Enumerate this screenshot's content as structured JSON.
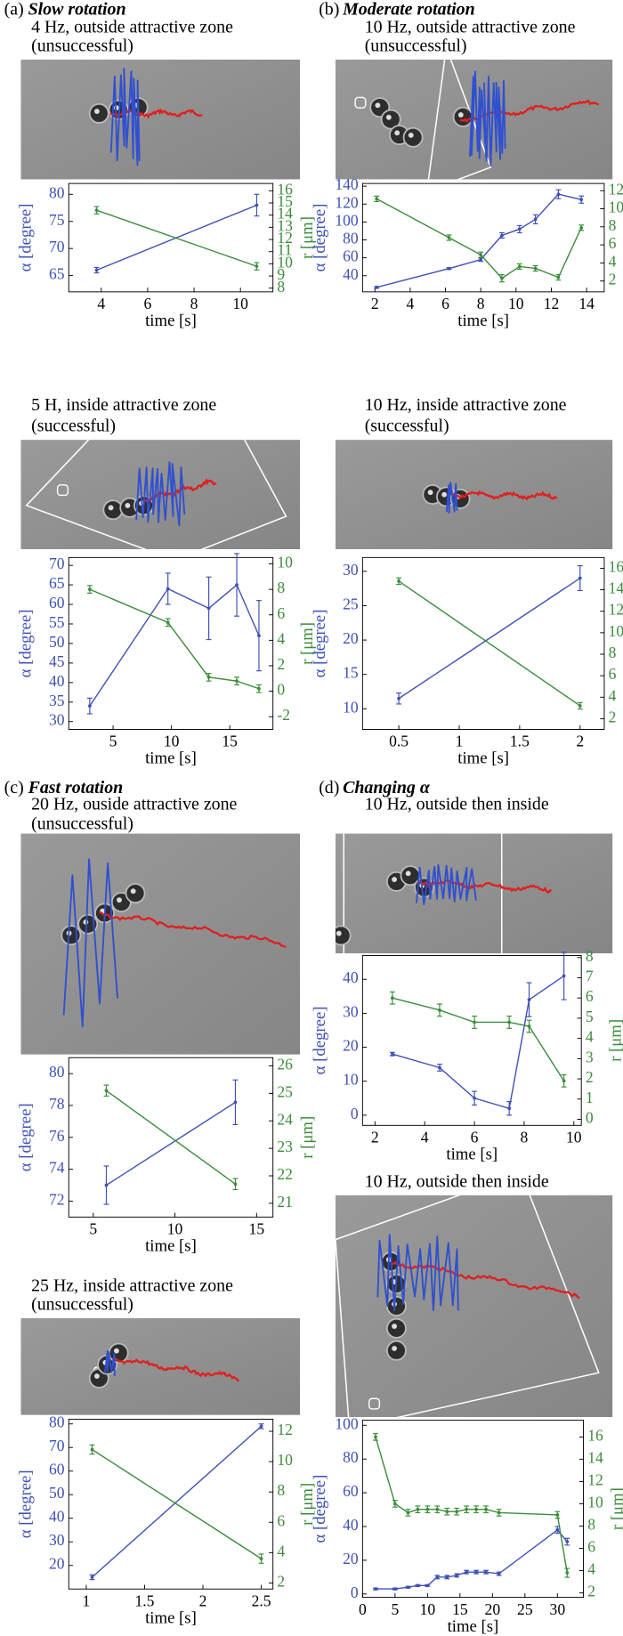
{
  "panels": [
    {
      "label": "(a)",
      "name": "Slow rotation"
    },
    {
      "label": "(b)",
      "name": "Moderate rotation"
    },
    {
      "label": "(c)",
      "name": "Fast rotation"
    },
    {
      "label": "(d)",
      "name": "Changing α"
    }
  ],
  "chart_data": [
    {
      "type": "line",
      "title": "4 Hz, outside attractive zone",
      "subtitle": "(unsuccessful)",
      "xlabel": "time [s]",
      "ylabel": "α [degree]",
      "y2label": "r [μm]",
      "x": [
        3.8,
        10.7
      ],
      "xlim": [
        2.6,
        11.4
      ],
      "xticks": [
        4,
        6,
        8,
        10
      ],
      "ylim": [
        62,
        82
      ],
      "yticks": [
        65,
        70,
        75,
        80
      ],
      "y2lim": [
        7.7,
        16.6
      ],
      "y2ticks": [
        8,
        9,
        10,
        11,
        12,
        13,
        14,
        15,
        16
      ],
      "series": [
        {
          "color": "#3f51b5",
          "axis": "y",
          "values": [
            66,
            78
          ],
          "errors": [
            0.5,
            2
          ]
        },
        {
          "color": "#3c8c3c",
          "axis": "y2",
          "values": [
            14.4,
            9.8
          ],
          "errors": [
            0.3,
            0.3
          ]
        }
      ]
    },
    {
      "type": "line",
      "title": "10 Hz, outside attractive zone",
      "subtitle": "(unsuccessful)",
      "xlabel": "time [s]",
      "ylabel": "α [degree]",
      "y2label": "r [μm]",
      "x": [
        2.1,
        6.2,
        8,
        9.2,
        10.2,
        11.1,
        12.4,
        13.7
      ],
      "xlim": [
        1.3,
        15
      ],
      "xticks": [
        2,
        4,
        6,
        8,
        10,
        12,
        14
      ],
      "ylim": [
        22,
        143
      ],
      "yticks": [
        40,
        60,
        80,
        100,
        120,
        140
      ],
      "y2lim": [
        0.8,
        12.8
      ],
      "y2ticks": [
        2,
        4,
        6,
        8,
        10,
        12
      ],
      "series": [
        {
          "color": "#3f51b5",
          "axis": "y",
          "values": [
            27,
            48,
            58,
            85,
            92,
            103,
            131,
            125
          ],
          "errors": [
            1,
            1,
            2,
            3,
            4,
            5,
            5,
            4
          ]
        },
        {
          "color": "#3c8c3c",
          "axis": "y2",
          "values": [
            11.1,
            6.8,
            4.9,
            2.3,
            3.6,
            3.4,
            2.4,
            7.9
          ],
          "errors": [
            0.3,
            0.3,
            0.3,
            0.4,
            0.3,
            0.3,
            0.3,
            0.3
          ]
        }
      ]
    },
    {
      "type": "line",
      "title": "5 H, inside attractive zone",
      "subtitle": "(successful)",
      "xlabel": "time [s]",
      "ylabel": "α [degree]",
      "y2label": "r [μm]",
      "x": [
        3,
        9.7,
        13.2,
        15.6,
        17.5
      ],
      "xlim": [
        1.2,
        18.7
      ],
      "xticks": [
        5,
        10,
        15
      ],
      "ylim": [
        28,
        72
      ],
      "yticks": [
        30,
        35,
        40,
        45,
        50,
        55,
        60,
        65,
        70
      ],
      "y2lim": [
        -3,
        10.5
      ],
      "y2ticks": [
        -2,
        0,
        2,
        4,
        6,
        8,
        10
      ],
      "series": [
        {
          "color": "#3f51b5",
          "axis": "y",
          "values": [
            34,
            64,
            59,
            65,
            52
          ],
          "errors": [
            2,
            4,
            8,
            8,
            9
          ]
        },
        {
          "color": "#3c8c3c",
          "axis": "y2",
          "values": [
            8,
            5.4,
            1.1,
            0.8,
            0.2
          ],
          "errors": [
            0.3,
            0.3,
            0.3,
            0.3,
            0.3
          ]
        }
      ]
    },
    {
      "type": "line",
      "title": "10 Hz, inside attractive zone",
      "subtitle": "(successful)",
      "xlabel": "time [s]",
      "ylabel": "α [degree]",
      "y2label": "r [μm]",
      "x": [
        0.5,
        2
      ],
      "xlim": [
        0.2,
        2.2
      ],
      "xticks": [
        0.5,
        1,
        1.5,
        2
      ],
      "ylim": [
        7,
        32
      ],
      "yticks": [
        10,
        15,
        20,
        25,
        30
      ],
      "y2lim": [
        1,
        17
      ],
      "y2ticks": [
        2,
        4,
        6,
        8,
        10,
        12,
        14,
        16
      ],
      "series": [
        {
          "color": "#3f51b5",
          "axis": "y",
          "values": [
            11.5,
            29
          ],
          "errors": [
            0.8,
            1.8
          ]
        },
        {
          "color": "#3c8c3c",
          "axis": "y2",
          "values": [
            14.8,
            3.2
          ],
          "errors": [
            0.3,
            0.3
          ]
        }
      ]
    },
    {
      "type": "line",
      "title": "20 Hz, ouside attractive zone",
      "subtitle": "(unsuccessful)",
      "xlabel": "time [s]",
      "ylabel": "α [degree]",
      "y2label": "r [μm]",
      "x": [
        5.8,
        13.7
      ],
      "xlim": [
        3.5,
        16
      ],
      "xticks": [
        5,
        10,
        15
      ],
      "ylim": [
        71,
        81
      ],
      "yticks": [
        72,
        74,
        76,
        78,
        80
      ],
      "y2lim": [
        20.5,
        26.3
      ],
      "y2ticks": [
        21,
        22,
        23,
        24,
        25,
        26
      ],
      "series": [
        {
          "color": "#3f51b5",
          "axis": "y",
          "values": [
            73,
            78.2
          ],
          "errors": [
            1.2,
            1.4
          ]
        },
        {
          "color": "#3c8c3c",
          "axis": "y2",
          "values": [
            25.1,
            21.7
          ],
          "errors": [
            0.2,
            0.2
          ]
        }
      ]
    },
    {
      "type": "line",
      "title": "25 Hz, inside attractive zone",
      "subtitle": "(unsuccessful)",
      "xlabel": "time [s]",
      "ylabel": "α [degree]",
      "y2label": "r [μm]",
      "x": [
        1.05,
        2.5
      ],
      "xlim": [
        0.85,
        2.6
      ],
      "xticks": [
        1,
        1.5,
        2,
        2.5
      ],
      "ylim": [
        10,
        82
      ],
      "yticks": [
        20,
        30,
        40,
        50,
        60,
        70,
        80
      ],
      "y2lim": [
        1.6,
        12.8
      ],
      "y2ticks": [
        2,
        4,
        6,
        8,
        10,
        12
      ],
      "series": [
        {
          "color": "#3f51b5",
          "axis": "y",
          "values": [
            15,
            79
          ],
          "errors": [
            1,
            1
          ]
        },
        {
          "color": "#3c8c3c",
          "axis": "y2",
          "values": [
            10.8,
            3.6
          ],
          "errors": [
            0.3,
            0.3
          ]
        }
      ]
    },
    {
      "type": "line",
      "title": "10 Hz, outside then inside",
      "xlabel": "time [s]",
      "ylabel": "α [degree]",
      "y2label": "r [μm]",
      "x": [
        2.7,
        4.6,
        6,
        7.4,
        8.2,
        9.6
      ],
      "xlim": [
        1.5,
        10.3
      ],
      "xticks": [
        2,
        4,
        6,
        8,
        10
      ],
      "ylim": [
        -3,
        47
      ],
      "yticks": [
        0,
        10,
        20,
        30,
        40
      ],
      "y2lim": [
        -0.3,
        8.1
      ],
      "y2ticks": [
        0,
        1,
        2,
        3,
        4,
        5,
        6,
        7,
        8
      ],
      "series": [
        {
          "color": "#3f51b5",
          "axis": "y",
          "values": [
            18,
            14,
            5,
            2,
            34,
            41
          ],
          "errors": [
            0.5,
            1,
            2,
            2,
            5,
            7
          ]
        },
        {
          "color": "#3c8c3c",
          "axis": "y2",
          "values": [
            6,
            5.4,
            4.8,
            4.8,
            4.6,
            1.9
          ],
          "errors": [
            0.3,
            0.3,
            0.3,
            0.3,
            0.3,
            0.3
          ]
        }
      ]
    },
    {
      "type": "line",
      "title": "10 Hz, outside then inside",
      "xlabel": "time [s]",
      "ylabel": "α [degree]",
      "y2label": "r [μm]",
      "x": [
        2,
        5,
        7,
        8.5,
        10,
        11.5,
        13,
        14.5,
        16,
        17.5,
        19,
        21,
        30,
        31.5
      ],
      "xlim": [
        0,
        34
      ],
      "xticks": [
        0,
        5,
        10,
        15,
        20,
        25,
        30
      ],
      "ylim": [
        -2,
        103
      ],
      "yticks": [
        0,
        20,
        40,
        60,
        80,
        100
      ],
      "y2lim": [
        1.6,
        17.5
      ],
      "y2ticks": [
        2,
        4,
        6,
        8,
        10,
        12,
        14,
        16
      ],
      "series": [
        {
          "color": "#3f51b5",
          "axis": "y",
          "values": [
            3,
            3,
            4,
            5,
            5,
            10,
            10,
            11,
            13,
            13,
            13,
            12,
            38,
            31
          ],
          "errors": [
            0.5,
            0.5,
            0.5,
            0.5,
            0.5,
            1,
            1,
            1,
            1,
            1,
            1,
            1,
            2,
            2
          ]
        },
        {
          "color": "#3c8c3c",
          "axis": "y2",
          "values": [
            16,
            10,
            9.2,
            9.5,
            9.5,
            9.5,
            9.3,
            9.3,
            9.5,
            9.5,
            9.5,
            9.2,
            9.0,
            3.8
          ],
          "errors": [
            0.3,
            0.3,
            0.3,
            0.3,
            0.3,
            0.3,
            0.3,
            0.3,
            0.3,
            0.3,
            0.3,
            0.3,
            0.3,
            0.4
          ]
        }
      ]
    }
  ]
}
